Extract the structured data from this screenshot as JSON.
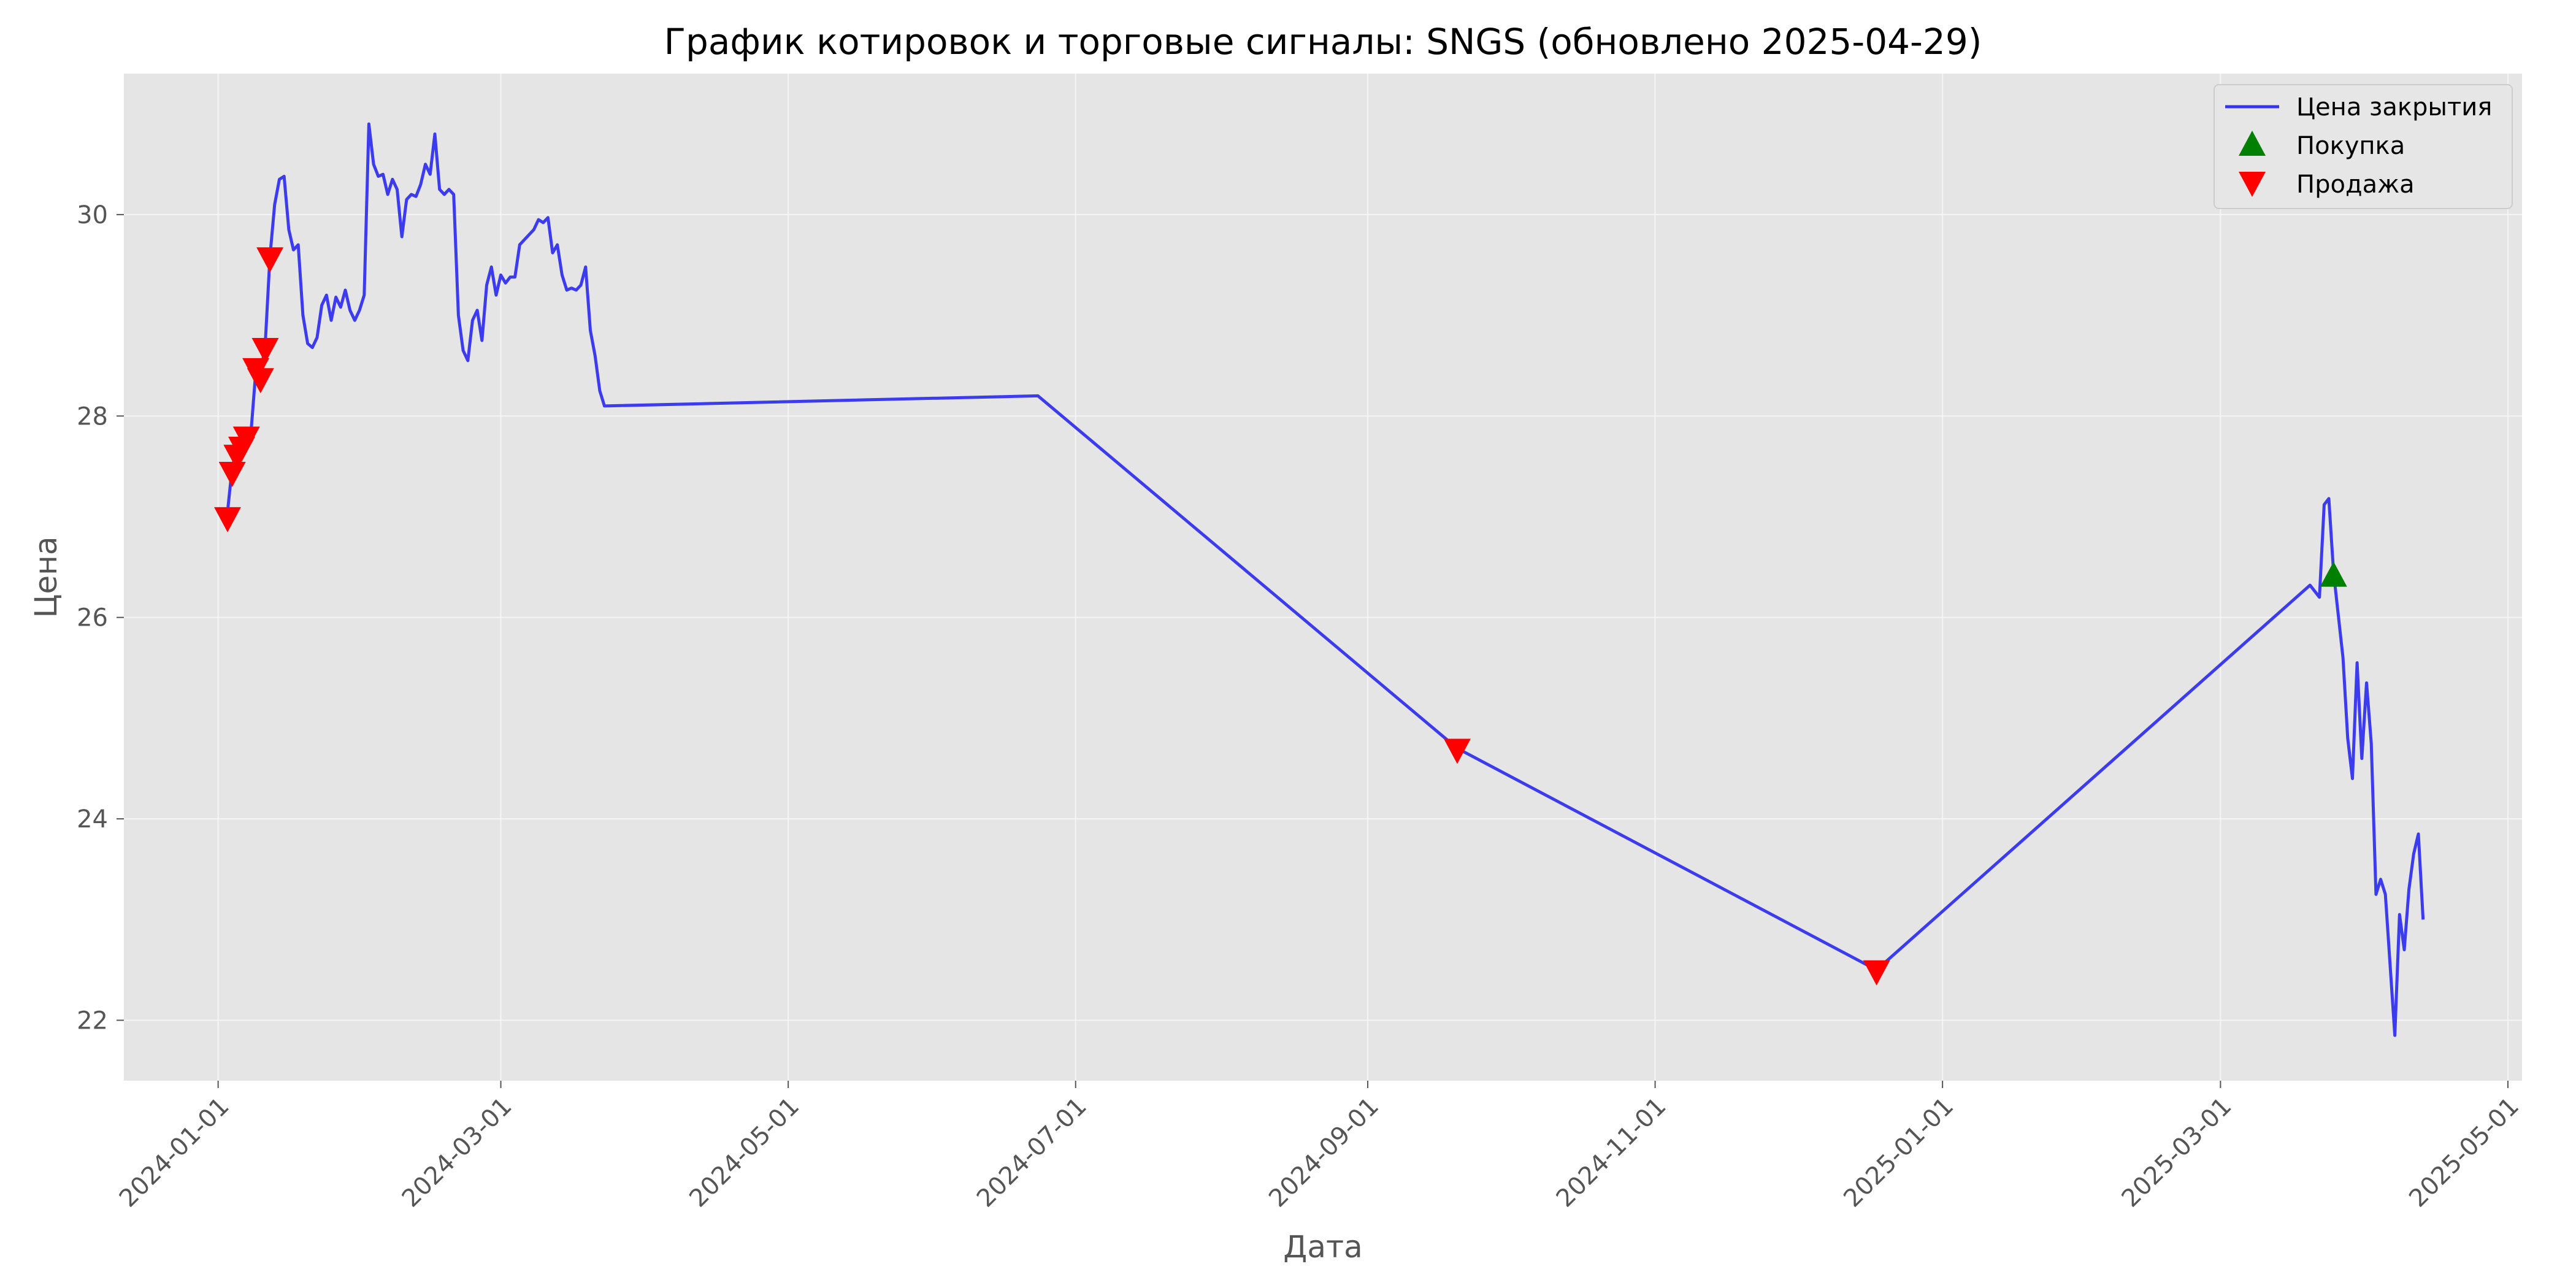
{
  "chart_data": {
    "type": "line",
    "title": "График котировок и торговые сигналы: SNGS (обновлено 2025-04-29)",
    "xlabel": "Дата",
    "ylabel": "Цена",
    "xlim": [
      "2023-12-12",
      "2025-05-04"
    ],
    "ylim": [
      21.4,
      31.4
    ],
    "x_ticks": [
      "2024-01-01",
      "2024-03-01",
      "2024-05-01",
      "2024-07-01",
      "2024-09-01",
      "2024-11-01",
      "2025-01-01",
      "2025-03-01",
      "2025-05-01"
    ],
    "y_ticks": [
      22,
      24,
      26,
      28,
      30
    ],
    "grid": true,
    "legend_position": "top-right",
    "colors": {
      "line": "#3333ee",
      "buy": "#008000",
      "sell": "#ff0000",
      "plot_bg": "#e5e5e5",
      "grid": "#f5f5f5"
    },
    "series": [
      {
        "name": "Цена закрытия",
        "kind": "line",
        "points": [
          [
            "2024-01-03",
            27.05
          ],
          [
            "2024-01-04",
            27.5
          ],
          [
            "2024-01-05",
            27.65
          ],
          [
            "2024-01-06",
            27.75
          ],
          [
            "2024-01-07",
            27.82
          ],
          [
            "2024-01-08",
            27.85
          ],
          [
            "2024-01-09",
            28.45
          ],
          [
            "2024-01-10",
            28.4
          ],
          [
            "2024-01-11",
            28.72
          ],
          [
            "2024-01-12",
            29.58
          ],
          [
            "2024-01-13",
            30.1
          ],
          [
            "2024-01-14",
            30.35
          ],
          [
            "2024-01-15",
            30.38
          ],
          [
            "2024-01-16",
            29.85
          ],
          [
            "2024-01-17",
            29.65
          ],
          [
            "2024-01-18",
            29.7
          ],
          [
            "2024-01-19",
            29.0
          ],
          [
            "2024-01-20",
            28.72
          ],
          [
            "2024-01-21",
            28.68
          ],
          [
            "2024-01-22",
            28.78
          ],
          [
            "2024-01-23",
            29.1
          ],
          [
            "2024-01-24",
            29.2
          ],
          [
            "2024-01-25",
            28.95
          ],
          [
            "2024-01-26",
            29.18
          ],
          [
            "2024-01-27",
            29.08
          ],
          [
            "2024-01-28",
            29.25
          ],
          [
            "2024-01-29",
            29.05
          ],
          [
            "2024-01-30",
            28.95
          ],
          [
            "2024-01-31",
            29.05
          ],
          [
            "2024-02-01",
            29.2
          ],
          [
            "2024-02-02",
            30.9
          ],
          [
            "2024-02-03",
            30.5
          ],
          [
            "2024-02-04",
            30.38
          ],
          [
            "2024-02-05",
            30.4
          ],
          [
            "2024-02-06",
            30.2
          ],
          [
            "2024-02-07",
            30.35
          ],
          [
            "2024-02-08",
            30.25
          ],
          [
            "2024-02-09",
            29.78
          ],
          [
            "2024-02-10",
            30.15
          ],
          [
            "2024-02-11",
            30.2
          ],
          [
            "2024-02-12",
            30.18
          ],
          [
            "2024-02-13",
            30.3
          ],
          [
            "2024-02-14",
            30.5
          ],
          [
            "2024-02-15",
            30.4
          ],
          [
            "2024-02-16",
            30.8
          ],
          [
            "2024-02-17",
            30.25
          ],
          [
            "2024-02-18",
            30.2
          ],
          [
            "2024-02-19",
            30.25
          ],
          [
            "2024-02-20",
            30.2
          ],
          [
            "2024-02-21",
            29.0
          ],
          [
            "2024-02-22",
            28.65
          ],
          [
            "2024-02-23",
            28.55
          ],
          [
            "2024-02-24",
            28.95
          ],
          [
            "2024-02-25",
            29.05
          ],
          [
            "2024-02-26",
            28.75
          ],
          [
            "2024-02-27",
            29.3
          ],
          [
            "2024-02-28",
            29.48
          ],
          [
            "2024-02-29",
            29.2
          ],
          [
            "2024-03-01",
            29.4
          ],
          [
            "2024-03-02",
            29.32
          ],
          [
            "2024-03-03",
            29.38
          ],
          [
            "2024-03-04",
            29.38
          ],
          [
            "2024-03-05",
            29.7
          ],
          [
            "2024-03-06",
            29.75
          ],
          [
            "2024-03-07",
            29.8
          ],
          [
            "2024-03-08",
            29.85
          ],
          [
            "2024-03-09",
            29.95
          ],
          [
            "2024-03-10",
            29.92
          ],
          [
            "2024-03-11",
            29.97
          ],
          [
            "2024-03-12",
            29.62
          ],
          [
            "2024-03-13",
            29.7
          ],
          [
            "2024-03-14",
            29.4
          ],
          [
            "2024-03-15",
            29.25
          ],
          [
            "2024-03-16",
            29.27
          ],
          [
            "2024-03-17",
            29.25
          ],
          [
            "2024-03-18",
            29.3
          ],
          [
            "2024-03-19",
            29.48
          ],
          [
            "2024-03-20",
            28.85
          ],
          [
            "2024-03-21",
            28.6
          ],
          [
            "2024-03-22",
            28.25
          ],
          [
            "2024-03-23",
            28.1
          ],
          [
            "2024-06-23",
            28.2
          ],
          [
            "2024-09-20",
            24.7
          ],
          [
            "2024-12-18",
            22.5
          ],
          [
            "2025-03-20",
            26.32
          ],
          [
            "2025-03-22",
            26.2
          ],
          [
            "2025-03-23",
            27.12
          ],
          [
            "2025-03-24",
            27.18
          ],
          [
            "2025-03-25",
            26.45
          ],
          [
            "2025-03-27",
            25.6
          ],
          [
            "2025-03-28",
            24.8
          ],
          [
            "2025-03-29",
            24.4
          ],
          [
            "2025-03-30",
            25.55
          ],
          [
            "2025-03-31",
            24.6
          ],
          [
            "2025-04-01",
            25.35
          ],
          [
            "2025-04-02",
            24.75
          ],
          [
            "2025-04-03",
            23.25
          ],
          [
            "2025-04-04",
            23.4
          ],
          [
            "2025-04-05",
            23.25
          ],
          [
            "2025-04-07",
            21.85
          ],
          [
            "2025-04-08",
            23.05
          ],
          [
            "2025-04-09",
            22.7
          ],
          [
            "2025-04-10",
            23.3
          ],
          [
            "2025-04-11",
            23.65
          ],
          [
            "2025-04-12",
            23.85
          ],
          [
            "2025-04-13",
            23.0
          ]
        ]
      },
      {
        "name": "Покупка",
        "kind": "marker",
        "marker": "triangle-up",
        "points": [
          [
            "2025-03-25",
            26.4
          ]
        ]
      },
      {
        "name": "Продажа",
        "kind": "marker",
        "marker": "triangle-down",
        "points": [
          [
            "2024-01-03",
            27.0
          ],
          [
            "2024-01-04",
            27.45
          ],
          [
            "2024-01-05",
            27.62
          ],
          [
            "2024-01-06",
            27.7
          ],
          [
            "2024-01-07",
            27.8
          ],
          [
            "2024-01-09",
            28.48
          ],
          [
            "2024-01-10",
            28.38
          ],
          [
            "2024-01-11",
            28.68
          ],
          [
            "2024-01-12",
            29.58
          ],
          [
            "2024-09-20",
            24.7
          ],
          [
            "2024-12-18",
            22.5
          ]
        ]
      }
    ]
  }
}
